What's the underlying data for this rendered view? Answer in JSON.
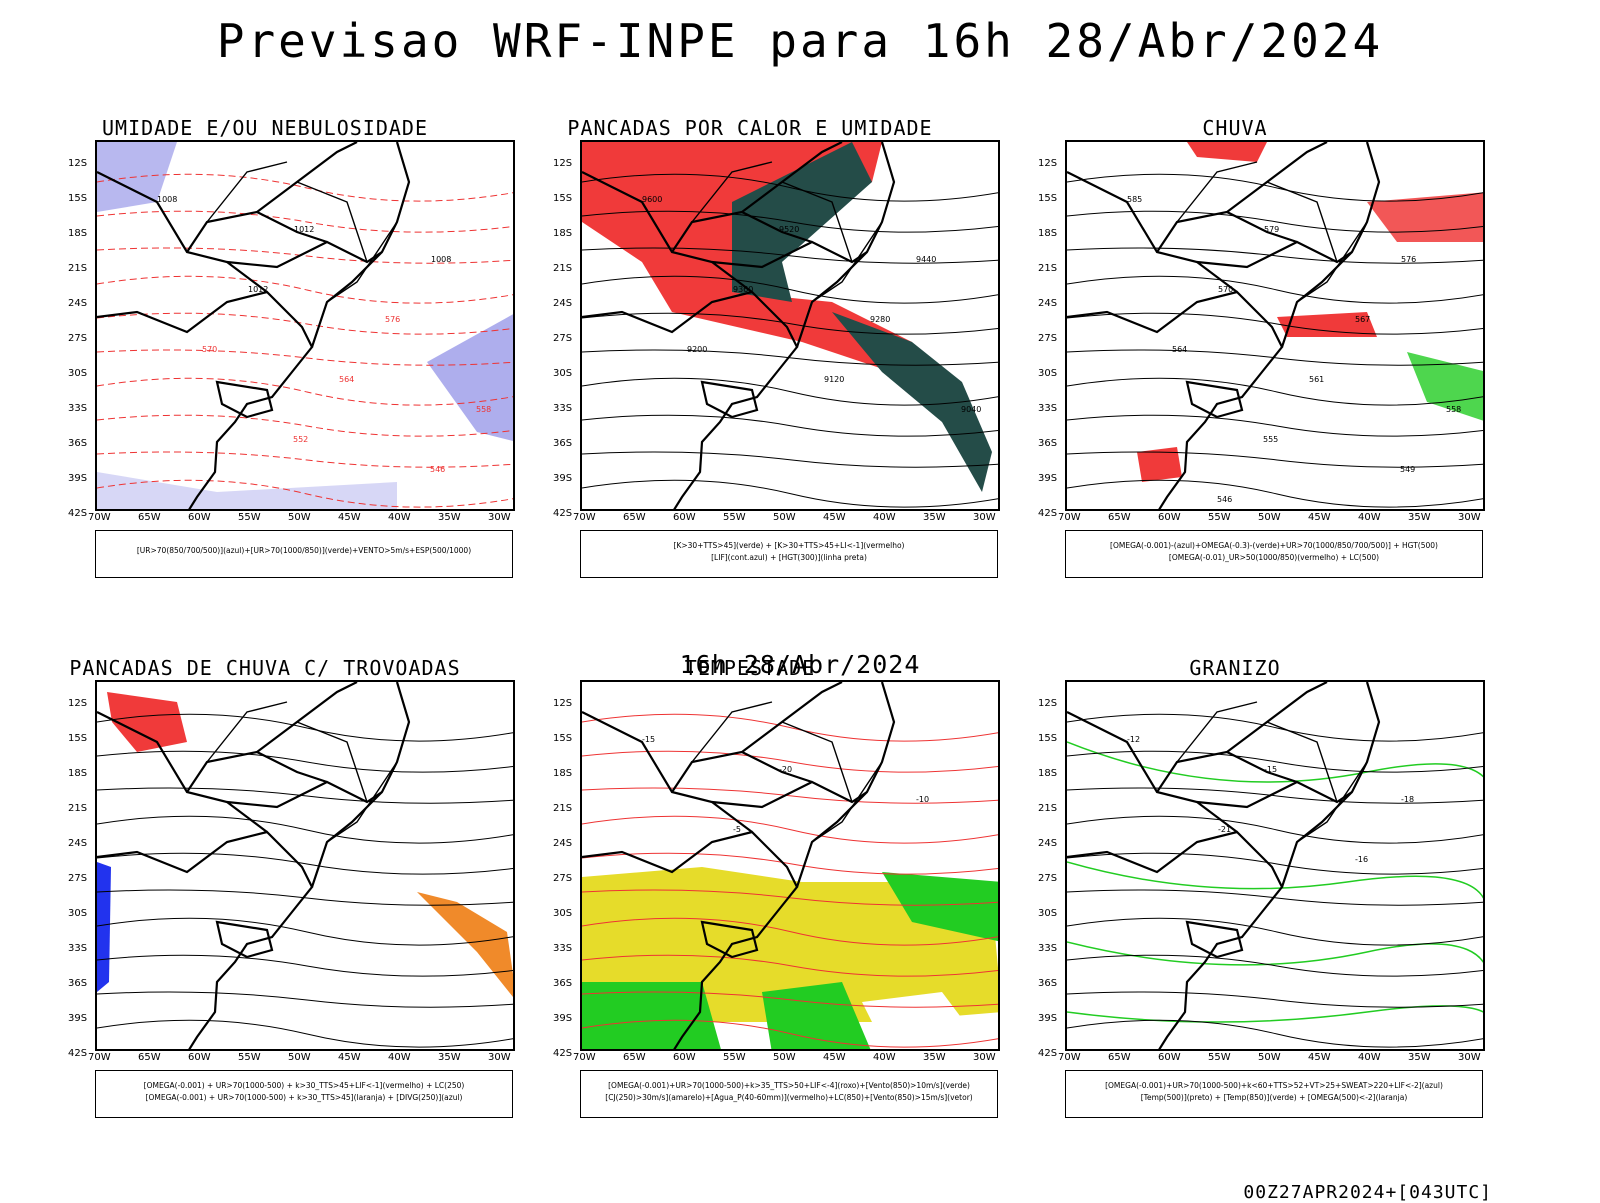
{
  "page": {
    "title": "Previsao WRF-INPE  para 16h 28/Abr/2024",
    "subtitle": "16h 28/Abr/2024",
    "footer": "00Z27APR2024+[043UTC]"
  },
  "axes": {
    "lat_ticks": [
      "12S",
      "15S",
      "18S",
      "21S",
      "24S",
      "27S",
      "30S",
      "33S",
      "36S",
      "39S",
      "42S"
    ],
    "lon_ticks": [
      "70W",
      "65W",
      "60W",
      "55W",
      "50W",
      "45W",
      "40W",
      "35W",
      "30W"
    ]
  },
  "panels": [
    {
      "title": "UMIDADE E/OU NEBULOSIDADE",
      "legend_lines": [
        "[UR>70(850/700/500)](azul)+[UR>70(1000/850)](verde)+VENTO>5m/s+ESP(500/1000)"
      ],
      "contour_labels": [
        "1008",
        "1012",
        "1008",
        "1012",
        "576",
        "570",
        "564",
        "558",
        "552",
        "546"
      ],
      "colors": {
        "fill1": "#9a9ae8",
        "fill2": "#22cc22",
        "contour": "#ee3333"
      }
    },
    {
      "title": "PANCADAS POR CALOR E UMIDADE",
      "legend_lines": [
        "[K>30+TTS>45](verde) + [K>30+TTS>45+LI<-1](vermelho)",
        "[LIF](cont.azul) + [HGT(300)](linha preta)"
      ],
      "contour_labels": [
        "9600",
        "9520",
        "9440",
        "9360",
        "9280",
        "9200",
        "9120",
        "9040"
      ],
      "colors": {
        "fill1": "#f03a3a",
        "fill2": "#244c48",
        "contour": "#2233ee"
      }
    },
    {
      "title": "CHUVA",
      "legend_lines": [
        "[OMEGA(-0.001)-(azul)+OMEGA(-0.3)-(verde)+UR>70(1000/850/700/500)] + HGT(500)",
        "[OMEGA(-0.01)_UR>50(1000/850)(vermelho) + LC(500)"
      ],
      "contour_labels": [
        "585",
        "579",
        "576",
        "570",
        "567",
        "564",
        "561",
        "558",
        "555",
        "549",
        "546"
      ],
      "colors": {
        "fill1": "#f03a3a",
        "fill2": "#22cc22",
        "contour": "#2233ee"
      }
    },
    {
      "title": "PANCADAS DE CHUVA C/ TROVOADAS",
      "legend_lines": [
        "[OMEGA(-0.001) + UR>70(1000-500) + k>30_TTS>45+LIF<-1](vermelho) + LC(250)",
        "[OMEGA(-0.001) + UR>70(1000-500) + k>30_TTS>45](laranja) + [DIVG(250)](azul)"
      ],
      "contour_labels": [],
      "colors": {
        "fill1": "#f03a3a",
        "fill2": "#f08a2a",
        "contour": "#2233ee"
      }
    },
    {
      "title": "TEMPESTADE",
      "legend_lines": [
        "[OMEGA(-0.001)+UR>70(1000-500)+k>35_TTS>50+LIF<-4](roxo)+[Vento(850)>10m/s](verde)",
        "[CJ(250)>30m/s](amarelo)+[Agua_P(40-60mm)](vermelho)+LC(850)+[Vento(850)>15m/s](vetor)"
      ],
      "contour_labels": [
        "-15",
        "-20",
        "-10",
        "-5"
      ],
      "colors": {
        "fill1": "#e6dc2a",
        "fill2": "#22cc22",
        "contour": "#ee3333"
      }
    },
    {
      "title": "GRANIZO",
      "legend_lines": [
        "[OMEGA(-0.001)+UR>70(1000-500)+k<60+TTS>52+VT>25+SWEAT>220+LIF<-2](azul)",
        "[Temp(500)](preto) + [Temp(850)](verde) + [OMEGA(500)<-2](laranja)"
      ],
      "contour_labels": [
        "-12",
        "-15",
        "-18",
        "-21",
        "-16"
      ],
      "colors": {
        "fill1": "#22cc22",
        "fill2": "#f08a2a",
        "contour": "#22cc22"
      }
    }
  ]
}
